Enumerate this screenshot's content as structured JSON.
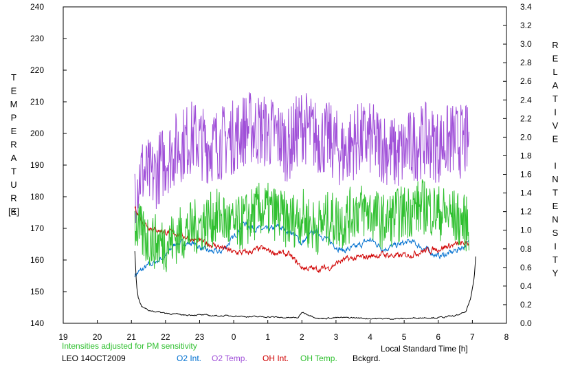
{
  "chart_data": {
    "type": "line",
    "title": "",
    "xlabel": "Local Standard Time [h]",
    "ylabel_left": "TEMPERATURE",
    "ylabel_left_unit": "[K]",
    "ylabel_right": "RELATIVE INTENSITY",
    "x_range": [
      19,
      32
    ],
    "x_tick_values": [
      19,
      20,
      21,
      22,
      23,
      24,
      25,
      26,
      27,
      28,
      29,
      30,
      31,
      32
    ],
    "x_tick_labels": [
      "19",
      "20",
      "21",
      "22",
      "23",
      "0",
      "1",
      "2",
      "3",
      "4",
      "5",
      "6",
      "7",
      "8"
    ],
    "y_left_range": [
      140,
      240
    ],
    "y_left_ticks": [
      "140",
      "150",
      "160",
      "170",
      "180",
      "190",
      "200",
      "210",
      "220",
      "230",
      "240"
    ],
    "y_right_range": [
      0,
      3.4
    ],
    "y_right_ticks": [
      "0.0",
      "0.2",
      "0.4",
      "0.6",
      "0.8",
      "1.0",
      "1.2",
      "1.4",
      "1.6",
      "1.8",
      "2.0",
      "2.2",
      "2.4",
      "2.6",
      "2.8",
      "3.0",
      "3.2",
      "3.4"
    ],
    "grid": false,
    "note": "Intensities adjusted for PM sensitivity",
    "station": "LEO 14OCT2009",
    "series": [
      {
        "name": "O2 Int.",
        "axis": "right",
        "color": "#0070d0",
        "x": [
          21.1,
          21.5,
          22.0,
          22.3,
          22.8,
          23.2,
          23.6,
          24.0,
          24.3,
          24.6,
          25.0,
          25.3,
          25.7,
          26.0,
          26.4,
          26.8,
          27.2,
          27.6,
          28.0,
          28.4,
          28.8,
          29.2,
          29.6,
          30.0,
          30.4,
          30.9
        ],
        "y": [
          0.52,
          0.62,
          0.72,
          0.86,
          0.86,
          0.78,
          0.76,
          0.92,
          1.08,
          1.02,
          1.0,
          1.04,
          0.98,
          0.86,
          1.0,
          0.88,
          0.78,
          0.82,
          0.9,
          0.8,
          0.84,
          0.88,
          0.8,
          0.72,
          0.76,
          0.86
        ]
      },
      {
        "name": "O2 Temp.",
        "axis": "left",
        "color": "#a050d8",
        "x": [
          21.1,
          21.3,
          21.6,
          22.0,
          22.4,
          22.8,
          23.2,
          23.6,
          24.0,
          24.4,
          24.8,
          25.2,
          25.6,
          26.0,
          26.4,
          26.8,
          27.2,
          27.6,
          28.0,
          28.4,
          28.8,
          29.2,
          29.6,
          30.0,
          30.4,
          30.9
        ],
        "y": [
          183,
          188,
          186,
          192,
          196,
          199,
          196,
          197,
          199,
          202,
          201,
          200,
          196,
          203,
          199,
          198,
          194,
          198,
          198,
          196,
          193,
          196,
          198,
          196,
          198,
          197
        ]
      },
      {
        "name": "OH Int.",
        "axis": "right",
        "color": "#d00000",
        "x": [
          21.1,
          21.3,
          21.6,
          22.0,
          22.4,
          22.8,
          23.2,
          23.6,
          24.0,
          24.4,
          24.8,
          25.2,
          25.6,
          26.0,
          26.4,
          26.8,
          27.2,
          27.6,
          28.0,
          28.4,
          28.8,
          29.2,
          29.6,
          30.0,
          30.4,
          30.9
        ],
        "y": [
          1.25,
          1.1,
          1.02,
          0.98,
          0.96,
          0.9,
          0.86,
          0.82,
          0.76,
          0.76,
          0.8,
          0.76,
          0.74,
          0.6,
          0.58,
          0.6,
          0.68,
          0.7,
          0.72,
          0.74,
          0.72,
          0.74,
          0.78,
          0.8,
          0.84,
          0.86
        ]
      },
      {
        "name": "OH Temp.",
        "axis": "left",
        "color": "#30c030",
        "x": [
          21.1,
          21.3,
          21.6,
          22.0,
          22.4,
          22.8,
          23.2,
          23.6,
          24.0,
          24.4,
          24.8,
          25.2,
          25.6,
          26.0,
          26.4,
          26.8,
          27.2,
          27.6,
          28.0,
          28.4,
          28.8,
          29.2,
          29.6,
          30.0,
          30.4,
          30.9
        ],
        "y": [
          172,
          168,
          166,
          165,
          168,
          170,
          172,
          174,
          170,
          173,
          176,
          175,
          172,
          174,
          170,
          173,
          172,
          176,
          175,
          172,
          174,
          176,
          177,
          175,
          174,
          171
        ]
      },
      {
        "name": "Bckgrd.",
        "axis": "right",
        "color": "#000000",
        "x": [
          21.1,
          21.15,
          21.2,
          21.3,
          21.5,
          22.0,
          22.5,
          23.0,
          23.5,
          24.0,
          24.5,
          25.0,
          25.5,
          25.9,
          26.0,
          26.5,
          27.0,
          27.5,
          28.0,
          28.5,
          29.0,
          29.5,
          30.0,
          30.5,
          30.8,
          30.95,
          31.05,
          31.1
        ],
        "y": [
          0.78,
          0.4,
          0.28,
          0.18,
          0.14,
          0.11,
          0.09,
          0.09,
          0.08,
          0.08,
          0.07,
          0.07,
          0.06,
          0.06,
          0.12,
          0.05,
          0.06,
          0.06,
          0.05,
          0.05,
          0.05,
          0.06,
          0.06,
          0.08,
          0.12,
          0.26,
          0.48,
          0.72
        ]
      }
    ]
  }
}
